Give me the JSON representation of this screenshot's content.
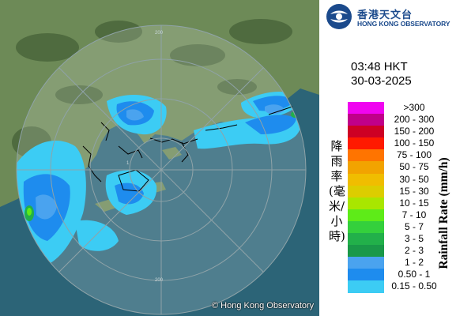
{
  "header": {
    "org_zh": "香港天文台",
    "org_en": "HONG KONG OBSERVATORY"
  },
  "timestamp": {
    "time": "03:48 HKT",
    "date": "30-03-2025"
  },
  "map": {
    "copyright": "© Hong Kong Observatory",
    "range_rings": {
      "label_top": "200",
      "label_bottom": "200",
      "label_inner_left": "1"
    }
  },
  "legend": {
    "title_zh": "降雨率(毫米/小時)",
    "title_en": "Rainfall Rate (mm/h)",
    "classes": [
      {
        "label": ">300",
        "color": "#f005f0"
      },
      {
        "label": "200 - 300",
        "color": "#c0008a"
      },
      {
        "label": "150 - 200",
        "color": "#cd0024"
      },
      {
        "label": "100 - 150",
        "color": "#ff1a00"
      },
      {
        "label": "75 - 100",
        "color": "#ff7400"
      },
      {
        "label": "50 - 75",
        "color": "#f2a300"
      },
      {
        "label": "30 - 50",
        "color": "#f0bd00"
      },
      {
        "label": "15 - 30",
        "color": "#dccd00"
      },
      {
        "label": "10 - 15",
        "color": "#a9e600"
      },
      {
        "label": "7 - 10",
        "color": "#5eeb18"
      },
      {
        "label": "5 - 7",
        "color": "#34d03c"
      },
      {
        "label": "3 - 5",
        "color": "#22b04a"
      },
      {
        "label": "2 - 3",
        "color": "#1a9848"
      },
      {
        "label": "1 - 2",
        "color": "#4aa3ef"
      },
      {
        "label": "0.50 - 1",
        "color": "#1e8cee"
      },
      {
        "label": "0.15 - 0.50",
        "color": "#3cccf4"
      }
    ]
  }
}
